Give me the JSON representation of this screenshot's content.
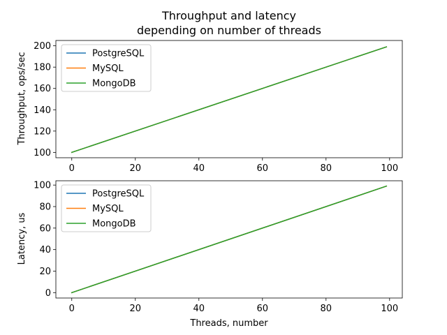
{
  "figure": {
    "title_line1": "Throughput and latency",
    "title_line2": "depending on number of threads"
  },
  "chart_data": [
    {
      "type": "line",
      "title": "",
      "xlabel": "",
      "ylabel": "Throughput, ops/sec",
      "xlim": [
        -5,
        104
      ],
      "ylim": [
        95,
        205
      ],
      "x_ticks": [
        0,
        20,
        40,
        60,
        80,
        100
      ],
      "y_ticks": [
        100,
        120,
        140,
        160,
        180,
        200
      ],
      "grid": false,
      "legend_position": "upper-left",
      "series": [
        {
          "name": "PostgreSQL",
          "color": "#1f77b4",
          "x": [
            0,
            99
          ],
          "y": [
            100,
            199
          ]
        },
        {
          "name": "MySQL",
          "color": "#ff7f0e",
          "x": [
            0,
            99
          ],
          "y": [
            100,
            199
          ]
        },
        {
          "name": "MongoDB",
          "color": "#2ca02c",
          "x": [
            0,
            99
          ],
          "y": [
            100,
            199
          ]
        }
      ]
    },
    {
      "type": "line",
      "title": "",
      "xlabel": "Threads, number",
      "ylabel": "Latency, us",
      "xlim": [
        -5,
        104
      ],
      "ylim": [
        -5,
        104
      ],
      "x_ticks": [
        0,
        20,
        40,
        60,
        80,
        100
      ],
      "y_ticks": [
        0,
        20,
        40,
        60,
        80,
        100
      ],
      "grid": false,
      "legend_position": "upper-left",
      "series": [
        {
          "name": "PostgreSQL",
          "color": "#1f77b4",
          "x": [
            0,
            99
          ],
          "y": [
            0,
            99
          ]
        },
        {
          "name": "MySQL",
          "color": "#ff7f0e",
          "x": [
            0,
            99
          ],
          "y": [
            0,
            99
          ]
        },
        {
          "name": "MongoDB",
          "color": "#2ca02c",
          "x": [
            0,
            99
          ],
          "y": [
            0,
            99
          ]
        }
      ]
    }
  ]
}
